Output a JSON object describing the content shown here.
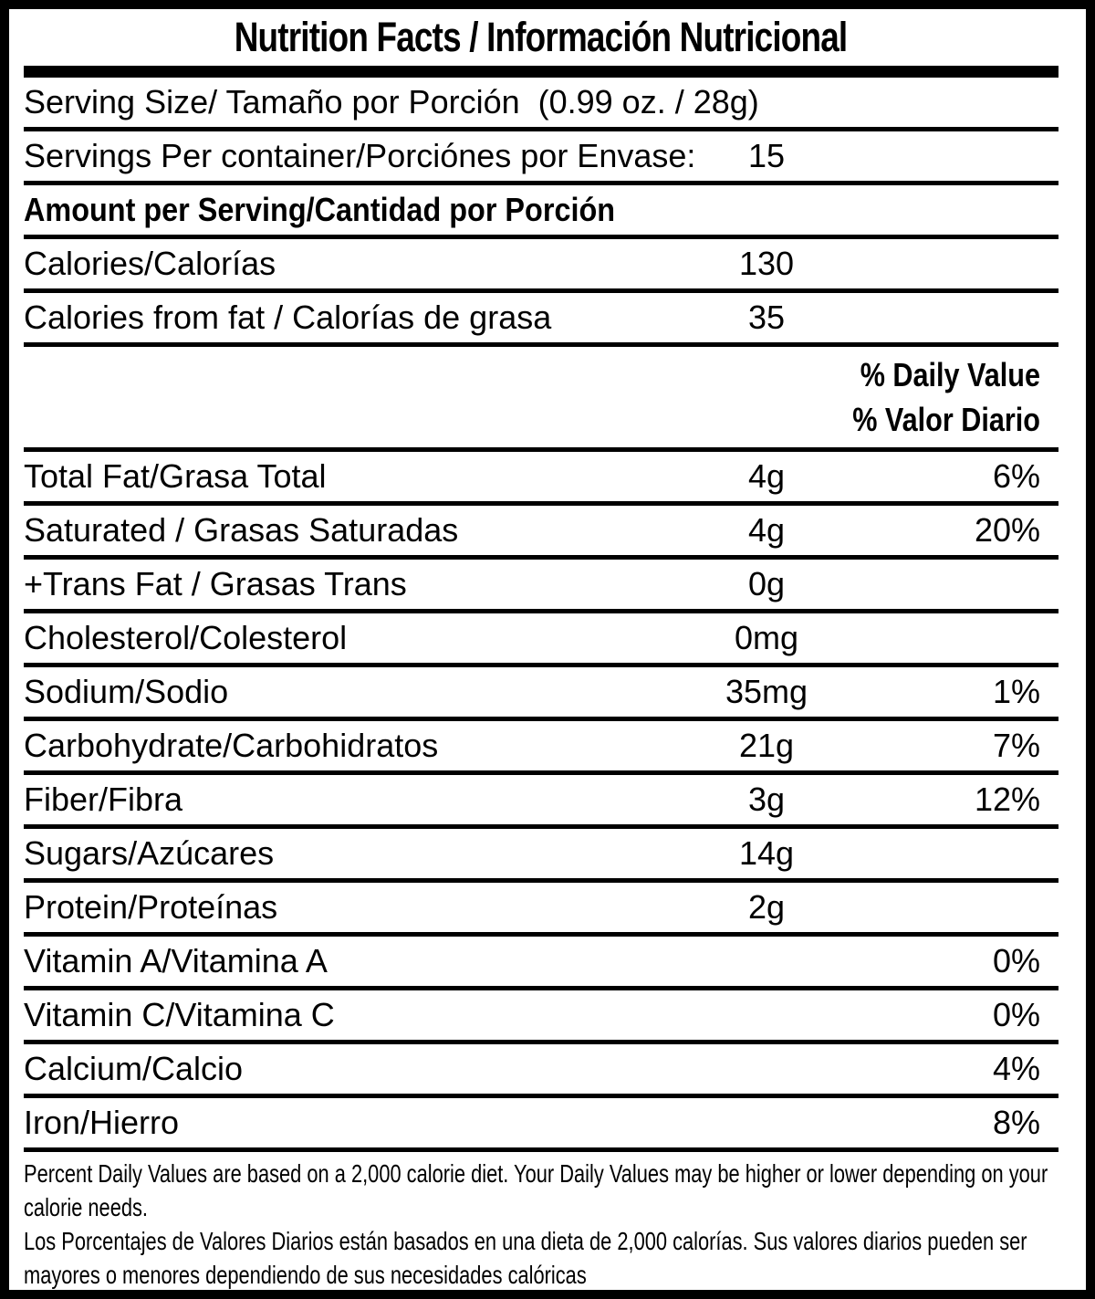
{
  "title": "Nutrition Facts / Información Nutricional",
  "serving": {
    "serving_size_label": "Serving Size/ Tamaño por Porción  (0.99 oz. / 28g)",
    "servings_per_container_label": "Servings Per container/Porciónes por Envase:",
    "servings_per_container_value": "15",
    "amount_per_serving_label": "Amount per Serving/Cantidad por Porción"
  },
  "calories": [
    {
      "label": "Calories/Calorías",
      "value": "130",
      "dv": ""
    },
    {
      "label": "Calories from fat / Calorías de grasa",
      "value": "35",
      "dv": ""
    }
  ],
  "daily_value_header": {
    "en": "% Daily Value",
    "es": "% Valor Diario"
  },
  "nutrients": [
    {
      "label": "Total Fat/Grasa Total",
      "value": "4g",
      "dv": "6%"
    },
    {
      "label": "Saturated / Grasas Saturadas",
      "value": "4g",
      "dv": "20%"
    },
    {
      "label": "+Trans Fat / Grasas Trans",
      "value": "0g",
      "dv": ""
    },
    {
      "label": "Cholesterol/Colesterol",
      "value": "0mg",
      "dv": ""
    },
    {
      "label": "Sodium/Sodio",
      "value": "35mg",
      "dv": "1%"
    },
    {
      "label": "Carbohydrate/Carbohidratos",
      "value": "21g",
      "dv": "7%"
    },
    {
      "label": "Fiber/Fibra",
      "value": "3g",
      "dv": "12%"
    },
    {
      "label": "Sugars/Azúcares",
      "value": "14g",
      "dv": ""
    },
    {
      "label": "Protein/Proteínas",
      "value": "2g",
      "dv": ""
    },
    {
      "label": "Vitamin A/Vitamina A",
      "value": "",
      "dv": "0%"
    },
    {
      "label": "Vitamin C/Vitamina C",
      "value": "",
      "dv": "0%"
    },
    {
      "label": "Calcium/Calcio",
      "value": "",
      "dv": "4%"
    },
    {
      "label": "Iron/Hierro",
      "value": "",
      "dv": "8%"
    }
  ],
  "footnote": {
    "en": "Percent Daily Values are based on a 2,000 calorie diet. Your Daily Values may be higher or lower depending on your calorie needs.",
    "es": "Los Porcentajes de Valores Diarios están basados en una dieta de 2,000 calorías. Sus valores diarios pueden ser mayores o menores dependiendo de sus necesidades calóricas"
  },
  "colors": {
    "border": "#000000",
    "background": "#ffffff",
    "text": "#000000"
  }
}
